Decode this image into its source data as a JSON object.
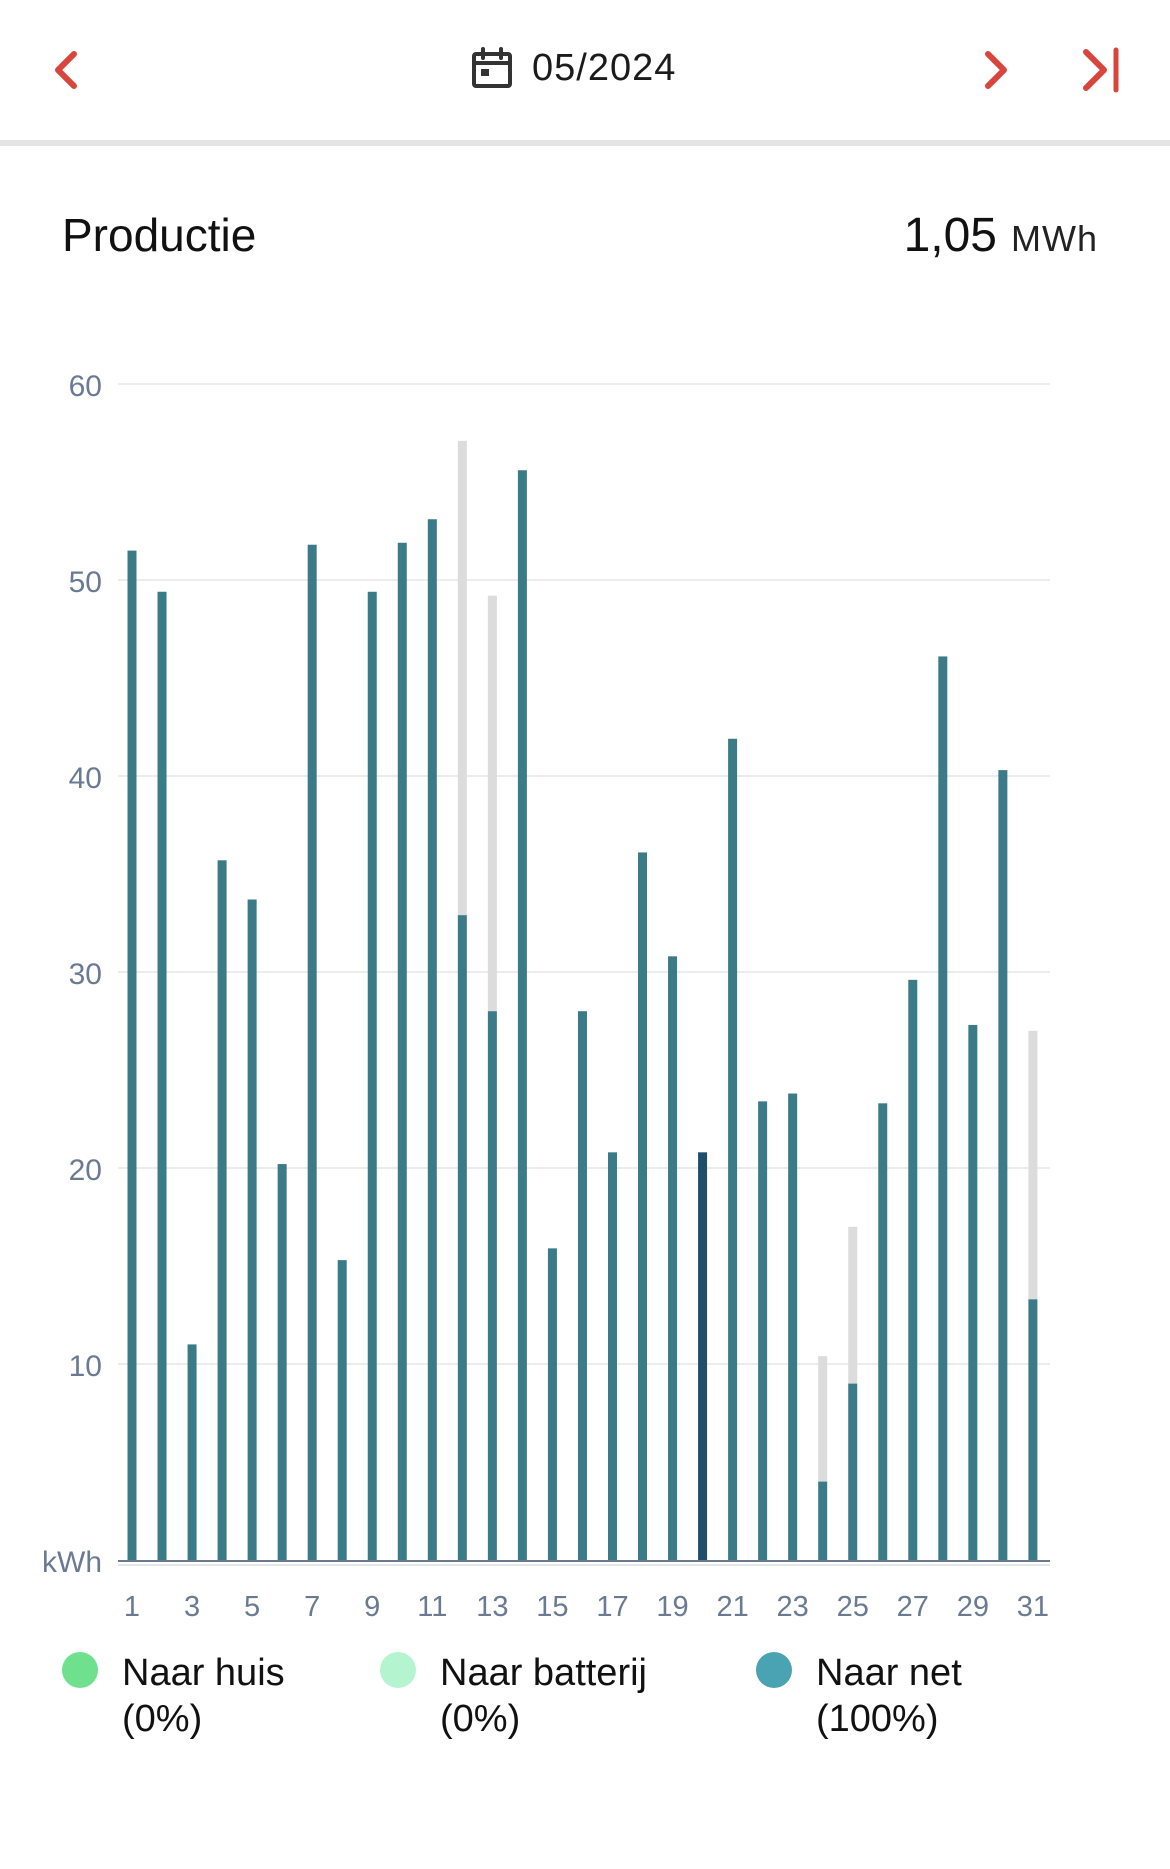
{
  "header": {
    "date": "05/2024"
  },
  "section": {
    "title": "Productie",
    "total_value": "1,05",
    "total_unit": "MWh"
  },
  "colors": {
    "accent": "#d9453d",
    "bar": "#3b7a87",
    "bar_selected": "#1f4e6a",
    "bar_stack": "#dcdcdc",
    "grid": "#ececec",
    "axis_text": "#6b7a93"
  },
  "chart_data": {
    "type": "bar",
    "ylabel": "kWh",
    "ylim": [
      0,
      60
    ],
    "yticks": [
      10,
      20,
      30,
      40,
      50,
      60
    ],
    "grid": true,
    "selected_day": 20,
    "categories": [
      "1",
      "2",
      "3",
      "4",
      "5",
      "6",
      "7",
      "8",
      "9",
      "10",
      "11",
      "12",
      "13",
      "14",
      "15",
      "16",
      "17",
      "18",
      "19",
      "20",
      "21",
      "22",
      "23",
      "24",
      "25",
      "26",
      "27",
      "28",
      "29",
      "30",
      "31"
    ],
    "xtick_labels": [
      "1",
      "3",
      "5",
      "7",
      "9",
      "11",
      "13",
      "15",
      "17",
      "19",
      "21",
      "23",
      "25",
      "27",
      "29",
      "31"
    ],
    "series": [
      {
        "values": [
          51.5,
          49.4,
          11.0,
          35.7,
          33.7,
          20.2,
          51.8,
          15.3,
          49.4,
          51.9,
          53.1,
          32.9,
          28.0,
          55.6,
          15.9,
          28.0,
          20.8,
          36.1,
          30.8,
          20.8,
          41.9,
          23.4,
          23.8,
          4.0,
          9.0,
          23.3,
          29.6,
          46.1,
          27.3,
          40.3,
          13.3
        ]
      },
      {
        "values": [
          0,
          0,
          0,
          0,
          0,
          0,
          0,
          0,
          0,
          0,
          0,
          24.2,
          21.2,
          0,
          0,
          0,
          0,
          0,
          0,
          0,
          0,
          0,
          0,
          6.4,
          8.0,
          0,
          0,
          0,
          0,
          0,
          13.7
        ]
      }
    ]
  },
  "legend": [
    {
      "label": "Naar huis",
      "pct": "(0%)",
      "color": "#6ee08e"
    },
    {
      "label": "Naar batterij",
      "pct": "(0%)",
      "color": "#b4f5d0"
    },
    {
      "label": "Naar net",
      "pct": "(100%)",
      "color": "#4aa3b2"
    }
  ]
}
